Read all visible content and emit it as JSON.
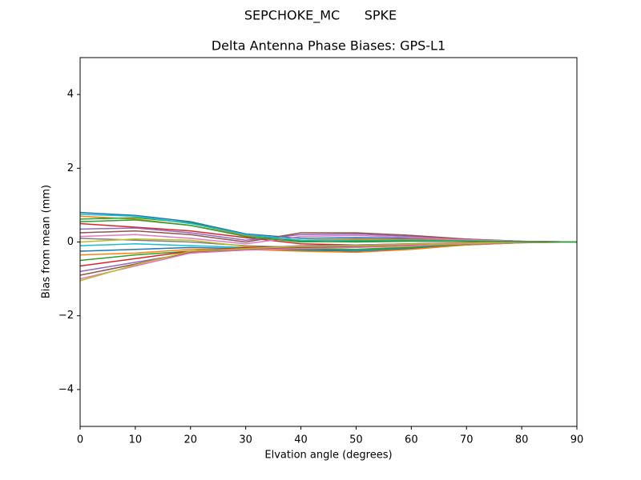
{
  "chart_data": {
    "type": "line",
    "suptitle": "SEPCHOKE_MC      SPKE",
    "title": "Delta Antenna Phase Biases: GPS-L1",
    "x_label": "Elvation angle (degrees)",
    "y_label": "Bias from mean (mm)",
    "x": [
      0,
      10,
      20,
      30,
      40,
      50,
      60,
      70,
      80,
      90
    ],
    "xlim": [
      0,
      90
    ],
    "xticks": [
      0,
      10,
      20,
      30,
      40,
      50,
      60,
      70,
      80,
      90
    ],
    "ylim": [
      -5,
      5
    ],
    "yticks": [
      {
        "value": -4,
        "label": "−4"
      },
      {
        "value": -2,
        "label": "−2"
      },
      0,
      2,
      4
    ],
    "series": [
      {
        "color": "#1f77b4",
        "values": [
          0.8,
          0.72,
          0.55,
          0.22,
          0.1,
          0.12,
          0.1,
          0.05,
          0.02,
          0
        ]
      },
      {
        "color": "#ff7f0e",
        "values": [
          0.7,
          0.62,
          0.45,
          0.18,
          0.05,
          0.08,
          0.07,
          0.04,
          0.01,
          0
        ]
      },
      {
        "color": "#2ca02c",
        "values": [
          0.62,
          0.66,
          0.52,
          0.2,
          0.02,
          0.0,
          0.02,
          0.02,
          0.01,
          0
        ]
      },
      {
        "color": "#d62728",
        "values": [
          0.5,
          0.4,
          0.3,
          0.12,
          -0.05,
          -0.08,
          -0.05,
          -0.02,
          0,
          0
        ]
      },
      {
        "color": "#9467bd",
        "values": [
          0.35,
          0.38,
          0.25,
          0.05,
          0.2,
          0.22,
          0.15,
          0.08,
          0.02,
          0
        ]
      },
      {
        "color": "#8c564b",
        "values": [
          0.25,
          0.3,
          0.2,
          0.0,
          0.25,
          0.25,
          0.18,
          0.08,
          0.02,
          0
        ]
      },
      {
        "color": "#e377c2",
        "values": [
          0.15,
          0.2,
          0.1,
          -0.05,
          0.15,
          0.18,
          0.12,
          0.06,
          0.02,
          0
        ]
      },
      {
        "color": "#7f7f7f",
        "values": [
          0.1,
          0.05,
          0.0,
          -0.1,
          -0.15,
          -0.12,
          -0.08,
          -0.03,
          0,
          0
        ]
      },
      {
        "color": "#bcbd22",
        "values": [
          0.0,
          0.08,
          0.05,
          -0.12,
          -0.18,
          -0.2,
          -0.12,
          -0.05,
          -0.01,
          0
        ]
      },
      {
        "color": "#17becf",
        "values": [
          -0.1,
          -0.05,
          -0.1,
          -0.15,
          -0.2,
          -0.22,
          -0.15,
          -0.06,
          -0.02,
          0
        ]
      },
      {
        "color": "#1f77b4",
        "values": [
          -0.25,
          -0.2,
          -0.15,
          -0.18,
          -0.22,
          -0.25,
          -0.18,
          -0.08,
          -0.02,
          0
        ]
      },
      {
        "color": "#ff7f0e",
        "values": [
          -0.35,
          -0.3,
          -0.2,
          -0.2,
          -0.25,
          -0.28,
          -0.2,
          -0.08,
          -0.02,
          0
        ]
      },
      {
        "color": "#2ca02c",
        "values": [
          -0.5,
          -0.35,
          -0.25,
          -0.18,
          -0.2,
          -0.2,
          -0.15,
          -0.06,
          -0.01,
          0
        ]
      },
      {
        "color": "#d62728",
        "values": [
          -0.65,
          -0.45,
          -0.25,
          -0.15,
          -0.12,
          -0.1,
          -0.08,
          -0.04,
          -0.01,
          0
        ]
      },
      {
        "color": "#9467bd",
        "values": [
          -0.8,
          -0.55,
          -0.3,
          -0.18,
          -0.1,
          -0.08,
          -0.05,
          -0.03,
          0,
          0
        ]
      },
      {
        "color": "#8c564b",
        "values": [
          -0.9,
          -0.6,
          -0.28,
          -0.2,
          -0.15,
          -0.12,
          -0.1,
          -0.05,
          -0.01,
          0
        ]
      },
      {
        "color": "#e377c2",
        "values": [
          -1.0,
          -0.65,
          -0.3,
          -0.22,
          -0.18,
          -0.15,
          -0.1,
          -0.05,
          -0.01,
          0
        ]
      },
      {
        "color": "#bcbd22",
        "values": [
          -1.05,
          -0.62,
          -0.25,
          -0.18,
          -0.12,
          -0.1,
          -0.06,
          -0.03,
          0,
          0
        ]
      },
      {
        "color": "#17becf",
        "values": [
          0.75,
          0.7,
          0.5,
          0.2,
          0.05,
          0.05,
          0.05,
          0.03,
          0.01,
          0
        ]
      },
      {
        "color": "#2ca02c",
        "values": [
          0.55,
          0.6,
          0.45,
          0.15,
          0.0,
          0.02,
          0.03,
          0.02,
          0.01,
          0
        ]
      }
    ]
  }
}
